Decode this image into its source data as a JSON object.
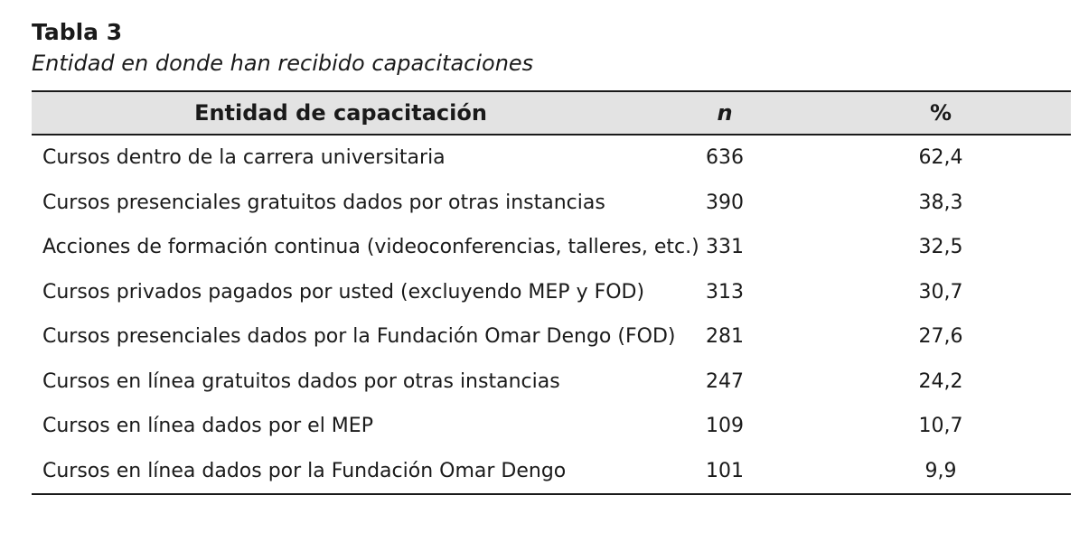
{
  "table": {
    "number": "Tabla 3",
    "caption": "Entidad en donde han recibido capacitaciones",
    "headers": {
      "entity": "Entidad de capacitación",
      "n": "n",
      "pct": "%"
    },
    "rows": [
      {
        "entity": "Cursos dentro de la carrera universitaria",
        "n": "636",
        "pct": "62,4"
      },
      {
        "entity": "Cursos presenciales gratuitos dados por otras instancias",
        "n": "390",
        "pct": "38,3"
      },
      {
        "entity": "Acciones de formación continua (videoconferencias, talleres, etc.)",
        "n": "331",
        "pct": "32,5"
      },
      {
        "entity": "Cursos privados pagados por usted (excluyendo MEP y FOD)",
        "n": "313",
        "pct": "30,7"
      },
      {
        "entity": "Cursos presenciales dados por la Fundación Omar Dengo (FOD)",
        "n": "281",
        "pct": "27,6"
      },
      {
        "entity": "Cursos en línea gratuitos dados por otras instancias",
        "n": "247",
        "pct": "24,2"
      },
      {
        "entity": "Cursos en línea dados por el MEP",
        "n": "109",
        "pct": "10,7"
      },
      {
        "entity": "Cursos en línea dados por la Fundación Omar Dengo",
        "n": "101",
        "pct": "9,9"
      }
    ]
  }
}
